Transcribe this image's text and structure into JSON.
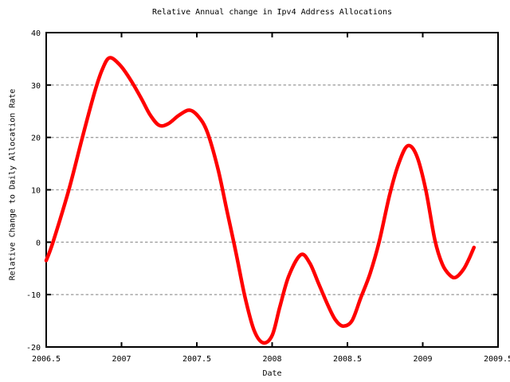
{
  "chart_data": {
    "type": "line",
    "title": "Relative Annual change in Ipv4 Address Allocations",
    "xlabel": "Date",
    "ylabel": "Relative Change to Daily Allocation Rate",
    "xlim": [
      2006.5,
      2009.5
    ],
    "ylim": [
      -20,
      40
    ],
    "xticks": [
      2006.5,
      2007,
      2007.5,
      2008,
      2008.5,
      2009,
      2009.5
    ],
    "xtick_labels": [
      "2006.5",
      "2007",
      "2007.5",
      "2008",
      "2008.5",
      "2009",
      "2009.5"
    ],
    "yticks": [
      -20,
      -10,
      0,
      10,
      20,
      30,
      40
    ],
    "ytick_labels": [
      "-20",
      "-10",
      "0",
      "10",
      "20",
      "30",
      "40"
    ],
    "grid": "horizontal-dashed",
    "legend": "none",
    "series": [
      {
        "name": "relative annual change",
        "color": "#ff0000",
        "line_width": 4.5,
        "points": [
          [
            2006.5,
            -3.5
          ],
          [
            2006.545,
            0.0
          ],
          [
            2006.65,
            10.0
          ],
          [
            2006.74,
            20.0
          ],
          [
            2006.82,
            28.5
          ],
          [
            2006.87,
            32.8
          ],
          [
            2006.92,
            35.2
          ],
          [
            2006.99,
            33.8
          ],
          [
            2007.06,
            31.0
          ],
          [
            2007.13,
            27.5
          ],
          [
            2007.19,
            24.3
          ],
          [
            2007.25,
            22.3
          ],
          [
            2007.31,
            22.6
          ],
          [
            2007.38,
            24.2
          ],
          [
            2007.45,
            25.2
          ],
          [
            2007.51,
            24.0
          ],
          [
            2007.57,
            21.0
          ],
          [
            2007.64,
            14.0
          ],
          [
            2007.7,
            6.0
          ],
          [
            2007.76,
            -2.0
          ],
          [
            2007.82,
            -10.5
          ],
          [
            2007.88,
            -16.8
          ],
          [
            2007.94,
            -19.2
          ],
          [
            2008.0,
            -17.8
          ],
          [
            2008.05,
            -12.5
          ],
          [
            2008.11,
            -6.5
          ],
          [
            2008.19,
            -2.4
          ],
          [
            2008.25,
            -4.0
          ],
          [
            2008.31,
            -8.0
          ],
          [
            2008.37,
            -12.0
          ],
          [
            2008.42,
            -14.8
          ],
          [
            2008.47,
            -16.0
          ],
          [
            2008.53,
            -15.0
          ],
          [
            2008.59,
            -10.5
          ],
          [
            2008.65,
            -6.0
          ],
          [
            2008.71,
            0.0
          ],
          [
            2008.78,
            9.0
          ],
          [
            2008.84,
            15.0
          ],
          [
            2008.9,
            18.4
          ],
          [
            2008.96,
            16.5
          ],
          [
            2009.02,
            10.0
          ],
          [
            2009.08,
            0.5
          ],
          [
            2009.13,
            -4.2
          ],
          [
            2009.18,
            -6.3
          ],
          [
            2009.22,
            -6.7
          ],
          [
            2009.27,
            -5.2
          ],
          [
            2009.31,
            -3.0
          ],
          [
            2009.34,
            -1.0
          ]
        ]
      }
    ]
  },
  "colors": {
    "curve": "#ff0000",
    "grid": "#a0a0a0",
    "border": "#000000",
    "text": "#000000",
    "background": "#ffffff"
  }
}
